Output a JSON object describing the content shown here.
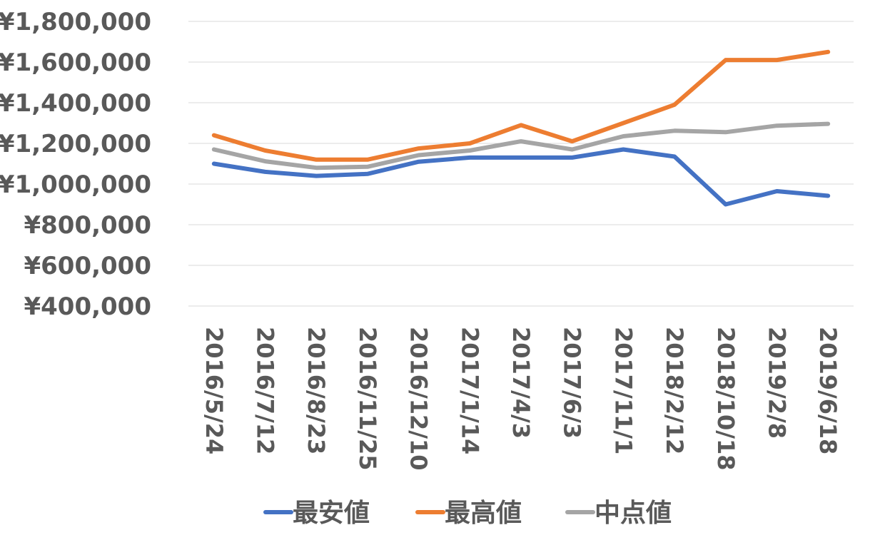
{
  "chart_data": {
    "type": "line",
    "categories": [
      "2016/5/24",
      "2016/7/12",
      "2016/8/23",
      "2016/11/25",
      "2016/12/10",
      "2017/1/14",
      "2017/4/3",
      "2017/6/3",
      "2017/11/1",
      "2018/2/12",
      "2018/10/18",
      "2019/2/8",
      "2019/6/18"
    ],
    "series": [
      {
        "name": "最安値",
        "color": "#4472c4",
        "values": [
          1100000,
          1060000,
          1040000,
          1050000,
          1110000,
          1130000,
          1130000,
          1130000,
          1170000,
          1135000,
          900000,
          965000,
          942000
        ]
      },
      {
        "name": "最高値",
        "color": "#ed7d31",
        "values": [
          1240000,
          1165000,
          1120000,
          1120000,
          1175000,
          1200000,
          1290000,
          1210000,
          1300000,
          1390000,
          1610000,
          1610000,
          1650000
        ]
      },
      {
        "name": "中点値",
        "color": "#a5a5a5",
        "values": [
          1170000,
          1112000,
          1080000,
          1085000,
          1142000,
          1165000,
          1210000,
          1170000,
          1235000,
          1262000,
          1255000,
          1287000,
          1296000
        ]
      }
    ],
    "y_ticks": [
      "¥400,000",
      "¥600,000",
      "¥800,000",
      "¥1,000,000",
      "¥1,200,000",
      "¥1,400,000",
      "¥1,600,000",
      "¥1,800,000"
    ],
    "ylim": [
      400000,
      1800000
    ],
    "y_step": 200000,
    "grid": true,
    "legend_position": "bottom",
    "title": "",
    "xlabel": "",
    "ylabel": ""
  }
}
